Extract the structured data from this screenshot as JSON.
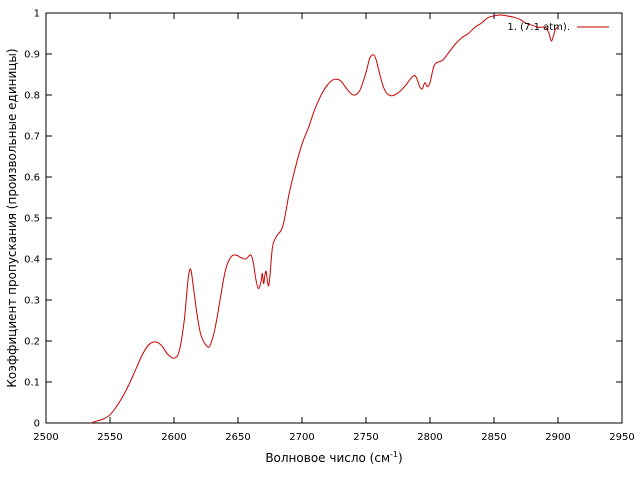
{
  "chart_data": {
    "type": "line",
    "xlabel": "Волновое число (см",
    "xlabel_sup": "-1",
    "xlabel_close": ")",
    "ylabel": "Коэффициент пропускания (произвольные единицы)",
    "xlim": [
      2500,
      2950
    ],
    "ylim": [
      0,
      1
    ],
    "xticks": [
      2500,
      2550,
      2600,
      2650,
      2700,
      2750,
      2800,
      2850,
      2900,
      2950
    ],
    "yticks": [
      0,
      0.1,
      0.2,
      0.3,
      0.4,
      0.5,
      0.6,
      0.7,
      0.8,
      0.9,
      1
    ],
    "xtick_labels": [
      "2500",
      "2550",
      "2600",
      "2650",
      "2700",
      "2750",
      "2800",
      "2850",
      "2900",
      "2950"
    ],
    "ytick_labels": [
      "0",
      "0.1",
      "0.2",
      "0.3",
      "0.4",
      "0.5",
      "0.6",
      "0.7",
      "0.8",
      "0.9",
      "1"
    ],
    "grid": false,
    "legend_position": "top-right",
    "series": [
      {
        "name": "1. (7.1 atm).",
        "color": "#cc0000",
        "x": [
          2535,
          2540,
          2545,
          2550,
          2555,
          2560,
          2565,
          2570,
          2575,
          2580,
          2585,
          2590,
          2595,
          2600,
          2604,
          2608,
          2611,
          2613,
          2615,
          2618,
          2621,
          2625,
          2628,
          2632,
          2636,
          2640,
          2644,
          2648,
          2652,
          2656,
          2660,
          2662,
          2664,
          2666,
          2668,
          2669,
          2670,
          2671,
          2672,
          2673,
          2674,
          2675,
          2677,
          2680,
          2685,
          2690,
          2695,
          2700,
          2705,
          2710,
          2715,
          2720,
          2725,
          2730,
          2735,
          2740,
          2745,
          2750,
          2753,
          2756,
          2758,
          2760,
          2763,
          2766,
          2770,
          2775,
          2780,
          2785,
          2788,
          2790,
          2792,
          2794,
          2796,
          2798,
          2800,
          2803,
          2806,
          2810,
          2815,
          2820,
          2825,
          2830,
          2835,
          2840,
          2845,
          2850,
          2855,
          2860,
          2865,
          2870,
          2875,
          2880,
          2885,
          2890,
          2893,
          2895,
          2898,
          2900
        ],
        "y": [
          0.0,
          0.005,
          0.01,
          0.02,
          0.04,
          0.065,
          0.095,
          0.13,
          0.165,
          0.19,
          0.198,
          0.19,
          0.168,
          0.158,
          0.175,
          0.25,
          0.35,
          0.375,
          0.335,
          0.265,
          0.215,
          0.19,
          0.188,
          0.23,
          0.3,
          0.37,
          0.403,
          0.41,
          0.404,
          0.4,
          0.41,
          0.39,
          0.35,
          0.328,
          0.345,
          0.365,
          0.34,
          0.36,
          0.37,
          0.345,
          0.335,
          0.36,
          0.43,
          0.455,
          0.48,
          0.56,
          0.625,
          0.68,
          0.72,
          0.765,
          0.8,
          0.825,
          0.838,
          0.835,
          0.815,
          0.8,
          0.81,
          0.855,
          0.89,
          0.898,
          0.885,
          0.86,
          0.825,
          0.805,
          0.798,
          0.805,
          0.82,
          0.84,
          0.848,
          0.838,
          0.82,
          0.815,
          0.83,
          0.82,
          0.83,
          0.87,
          0.88,
          0.885,
          0.905,
          0.925,
          0.94,
          0.95,
          0.965,
          0.975,
          0.988,
          0.993,
          0.995,
          0.993,
          0.99,
          0.985,
          0.975,
          0.97,
          0.965,
          0.965,
          0.95,
          0.932,
          0.96,
          0.965
        ]
      }
    ]
  }
}
